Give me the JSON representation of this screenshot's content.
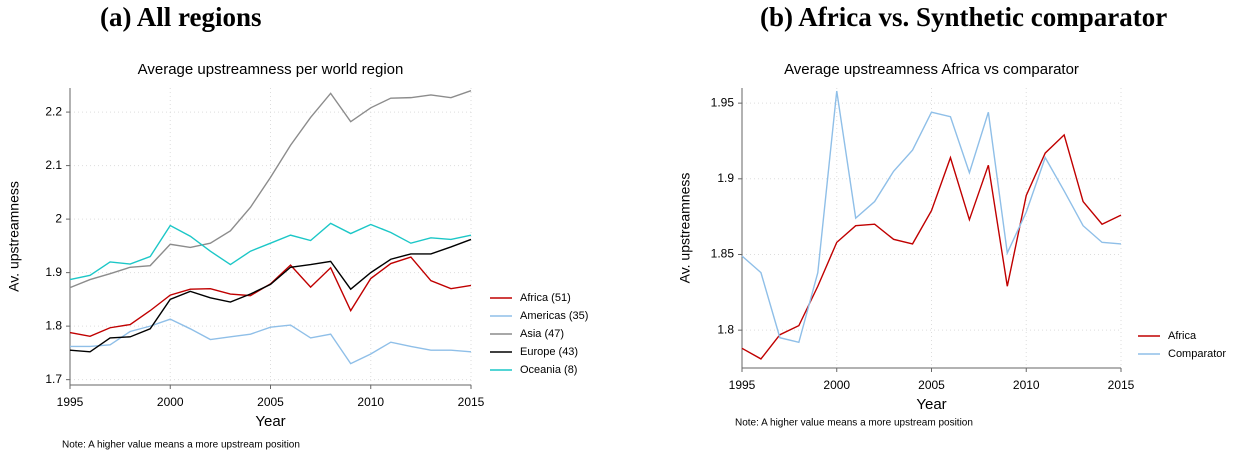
{
  "chart_data": [
    {
      "type": "line",
      "panel_label": "(a)  All regions",
      "title": "Average upstreamness per world region",
      "x": [
        1995,
        1996,
        1997,
        1998,
        1999,
        2000,
        2001,
        2002,
        2003,
        2004,
        2005,
        2006,
        2007,
        2008,
        2009,
        2010,
        2011,
        2012,
        2013,
        2014,
        2015
      ],
      "xlim": [
        1995,
        2015
      ],
      "xticks": [
        1995,
        2000,
        2005,
        2010,
        2015
      ],
      "ylim": [
        1.69,
        2.245
      ],
      "yticks": [
        1.7,
        1.8,
        1.9,
        2,
        2.1,
        2.2
      ],
      "xlabel": "Year",
      "ylabel": "Av. upstreamness",
      "grid": true,
      "legend": "right",
      "note": "Note: A higher value means a more upstream position",
      "series": [
        {
          "name": "Africa (51)",
          "color": "#c00000",
          "values": [
            1.788,
            1.781,
            1.797,
            1.803,
            1.829,
            1.858,
            1.869,
            1.87,
            1.86,
            1.857,
            1.879,
            1.914,
            1.873,
            1.909,
            1.829,
            1.889,
            1.917,
            1.929,
            1.885,
            1.87,
            1.876
          ]
        },
        {
          "name": "Americas (35)",
          "color": "#8fbfe8",
          "values": [
            1.762,
            1.762,
            1.765,
            1.79,
            1.8,
            1.813,
            1.795,
            1.775,
            1.78,
            1.785,
            1.798,
            1.802,
            1.778,
            1.785,
            1.73,
            1.748,
            1.77,
            1.762,
            1.755,
            1.755,
            1.752
          ]
        },
        {
          "name": "Asia (47)",
          "color": "#8c8c8c",
          "values": [
            1.872,
            1.887,
            1.898,
            1.91,
            1.913,
            1.953,
            1.947,
            1.955,
            1.978,
            2.022,
            2.078,
            2.138,
            2.19,
            2.235,
            2.182,
            2.208,
            2.226,
            2.227,
            2.232,
            2.227,
            2.24
          ]
        },
        {
          "name": "Europe (43)",
          "color": "#000000",
          "values": [
            1.755,
            1.752,
            1.778,
            1.78,
            1.795,
            1.85,
            1.865,
            1.853,
            1.845,
            1.86,
            1.878,
            1.91,
            1.915,
            1.921,
            1.869,
            1.9,
            1.925,
            1.935,
            1.935,
            1.948,
            1.962
          ]
        },
        {
          "name": "Oceania (8)",
          "color": "#1cc7c7",
          "values": [
            1.887,
            1.895,
            1.92,
            1.916,
            1.93,
            1.988,
            1.968,
            1.94,
            1.915,
            1.94,
            1.955,
            1.97,
            1.96,
            1.992,
            1.973,
            1.99,
            1.975,
            1.955,
            1.965,
            1.962,
            1.97
          ]
        }
      ]
    },
    {
      "type": "line",
      "panel_label": "(b)  Africa vs. Synthetic comparator",
      "title": "Average upstreamness Africa vs comparator",
      "x": [
        1995,
        1996,
        1997,
        1998,
        1999,
        2000,
        2001,
        2002,
        2003,
        2004,
        2005,
        2006,
        2007,
        2008,
        2009,
        2010,
        2011,
        2012,
        2013,
        2014,
        2015
      ],
      "xlim": [
        1995,
        2015
      ],
      "xticks": [
        1995,
        2000,
        2005,
        2010,
        2015
      ],
      "ylim": [
        1.775,
        1.96
      ],
      "yticks": [
        1.8,
        1.85,
        1.9,
        1.95
      ],
      "xlabel": "Year",
      "ylabel": "Av. upstreamness",
      "grid": true,
      "legend": "right",
      "note": "Note: A higher value means a more upstream position",
      "series": [
        {
          "name": "Africa",
          "color": "#c00000",
          "values": [
            1.788,
            1.781,
            1.797,
            1.803,
            1.829,
            1.858,
            1.869,
            1.87,
            1.86,
            1.857,
            1.879,
            1.914,
            1.873,
            1.909,
            1.829,
            1.889,
            1.917,
            1.929,
            1.885,
            1.87,
            1.876
          ]
        },
        {
          "name": "Comparator",
          "color": "#8fbfe8",
          "values": [
            1.849,
            1.838,
            1.795,
            1.792,
            1.838,
            1.958,
            1.874,
            1.885,
            1.905,
            1.919,
            1.944,
            1.941,
            1.904,
            1.944,
            1.851,
            1.878,
            1.914,
            1.892,
            1.869,
            1.858,
            1.857
          ]
        }
      ]
    }
  ]
}
